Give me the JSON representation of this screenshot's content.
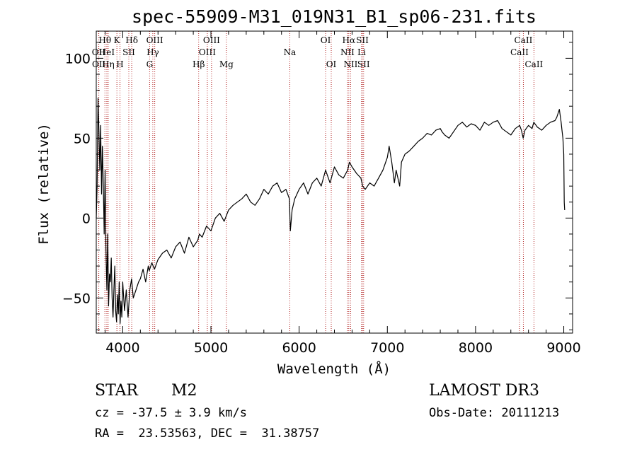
{
  "chart_data": {
    "type": "line",
    "title": "spec-55909-M31_019N31_B1_sp06-231.fits",
    "xlabel": "Wavelength (Å)",
    "ylabel": "Flux (relative)",
    "xlim": [
      3700,
      9100
    ],
    "ylim": [
      -72,
      117
    ],
    "xticks": [
      4000,
      5000,
      6000,
      7000,
      8000,
      9000
    ],
    "yticks": [
      -50,
      0,
      50,
      100
    ],
    "series": [
      {
        "name": "spectrum",
        "x": [
          3700,
          3710,
          3720,
          3730,
          3740,
          3750,
          3760,
          3770,
          3780,
          3790,
          3800,
          3810,
          3820,
          3830,
          3840,
          3850,
          3860,
          3870,
          3880,
          3890,
          3900,
          3910,
          3920,
          3930,
          3940,
          3950,
          3960,
          3970,
          3980,
          3990,
          4000,
          4020,
          4040,
          4060,
          4080,
          4100,
          4120,
          4150,
          4180,
          4200,
          4230,
          4260,
          4290,
          4300,
          4330,
          4360,
          4400,
          4450,
          4500,
          4550,
          4600,
          4650,
          4700,
          4750,
          4800,
          4850,
          4870,
          4900,
          4950,
          5000,
          5050,
          5100,
          5150,
          5200,
          5250,
          5300,
          5350,
          5400,
          5450,
          5500,
          5550,
          5600,
          5650,
          5700,
          5750,
          5800,
          5850,
          5890,
          5900,
          5920,
          5950,
          6000,
          6050,
          6100,
          6150,
          6200,
          6250,
          6300,
          6350,
          6400,
          6450,
          6500,
          6550,
          6570,
          6600,
          6650,
          6700,
          6720,
          6750,
          6800,
          6850,
          6900,
          6950,
          7000,
          7020,
          7050,
          7080,
          7100,
          7120,
          7140,
          7160,
          7200,
          7250,
          7300,
          7350,
          7400,
          7450,
          7500,
          7550,
          7600,
          7620,
          7650,
          7700,
          7750,
          7800,
          7850,
          7900,
          7950,
          8000,
          8050,
          8100,
          8150,
          8200,
          8250,
          8300,
          8350,
          8400,
          8450,
          8500,
          8520,
          8540,
          8560,
          8600,
          8640,
          8660,
          8700,
          8750,
          8800,
          8850,
          8900,
          8920,
          8950,
          8970,
          8980,
          8990,
          9000,
          9005,
          9010
        ],
        "values": [
          0,
          20,
          75,
          55,
          30,
          58,
          15,
          45,
          20,
          -10,
          30,
          -20,
          -45,
          -10,
          -55,
          -35,
          -40,
          -25,
          -50,
          -62,
          -45,
          -30,
          -58,
          -65,
          -48,
          -60,
          -40,
          -66,
          -52,
          -62,
          -40,
          -58,
          -45,
          -62,
          -45,
          -38,
          -50,
          -45,
          -40,
          -38,
          -32,
          -40,
          -30,
          -33,
          -28,
          -32,
          -26,
          -22,
          -20,
          -25,
          -18,
          -15,
          -22,
          -12,
          -18,
          -14,
          -10,
          -12,
          -5,
          -8,
          0,
          3,
          -2,
          5,
          8,
          10,
          12,
          15,
          10,
          8,
          12,
          18,
          15,
          20,
          22,
          16,
          18,
          12,
          -8,
          5,
          12,
          18,
          22,
          15,
          22,
          25,
          20,
          30,
          22,
          32,
          27,
          25,
          30,
          35,
          32,
          28,
          25,
          20,
          18,
          22,
          20,
          25,
          30,
          38,
          45,
          35,
          22,
          30,
          25,
          20,
          35,
          40,
          42,
          45,
          48,
          50,
          53,
          52,
          55,
          56,
          54,
          52,
          50,
          54,
          58,
          60,
          57,
          59,
          58,
          55,
          60,
          58,
          60,
          61,
          56,
          54,
          52,
          56,
          58,
          55,
          50,
          55,
          58,
          56,
          60,
          57,
          55,
          58,
          60,
          61,
          63,
          68,
          60,
          55,
          50,
          40,
          10,
          5
        ]
      }
    ],
    "spectral_lines": [
      {
        "label": "OII",
        "wavelength": 3727,
        "row": 2
      },
      {
        "label": "OII",
        "wavelength": 3729,
        "row": 3
      },
      {
        "label": "Hθ",
        "wavelength": 3798,
        "row": 1
      },
      {
        "label": "HeI",
        "wavelength": 3820,
        "row": 2
      },
      {
        "label": "Hη",
        "wavelength": 3835,
        "row": 3
      },
      {
        "label": "K",
        "wavelength": 3934,
        "row": 1
      },
      {
        "label": "SII",
        "wavelength": 4069,
        "row": 2
      },
      {
        "label": "H",
        "wavelength": 3969,
        "row": 3
      },
      {
        "label": "Hδ",
        "wavelength": 4102,
        "row": 1
      },
      {
        "label": "OIII",
        "wavelength": 4363,
        "row": 1
      },
      {
        "label": "Hγ",
        "wavelength": 4341,
        "row": 2
      },
      {
        "label": "G",
        "wavelength": 4305,
        "row": 3
      },
      {
        "label": "Hβ",
        "wavelength": 4861,
        "row": 3
      },
      {
        "label": "OIII",
        "wavelength": 5007,
        "row": 1
      },
      {
        "label": "OIII",
        "wavelength": 4959,
        "row": 2
      },
      {
        "label": "Mg",
        "wavelength": 5175,
        "row": 3
      },
      {
        "label": "Na",
        "wavelength": 5894,
        "row": 2
      },
      {
        "label": "OI",
        "wavelength": 6300,
        "row": 1
      },
      {
        "label": "OI",
        "wavelength": 6364,
        "row": 3
      },
      {
        "label": "Hα",
        "wavelength": 6563,
        "row": 1
      },
      {
        "label": "NII",
        "wavelength": 6548,
        "row": 2
      },
      {
        "label": "NII",
        "wavelength": 6584,
        "row": 3
      },
      {
        "label": "SII",
        "wavelength": 6717,
        "row": 1
      },
      {
        "label": "Li",
        "wavelength": 6708,
        "row": 2
      },
      {
        "label": "SII",
        "wavelength": 6731,
        "row": 3
      },
      {
        "label": "CaII",
        "wavelength": 8542,
        "row": 1
      },
      {
        "label": "CaII",
        "wavelength": 8498,
        "row": 2
      },
      {
        "label": "CaII",
        "wavelength": 8662,
        "row": 3
      }
    ]
  },
  "info": {
    "object_class": "STAR",
    "subclass": "M2",
    "survey": "LAMOST DR3",
    "redshift_line": "cz = -37.5 ± 3.9 km/s",
    "obs_date_line": "Obs-Date: 20111213",
    "coords_line": "RA =  23.53563, DEC =  31.38757"
  },
  "colors": {
    "line": "#000000",
    "marker": "#b22222"
  }
}
